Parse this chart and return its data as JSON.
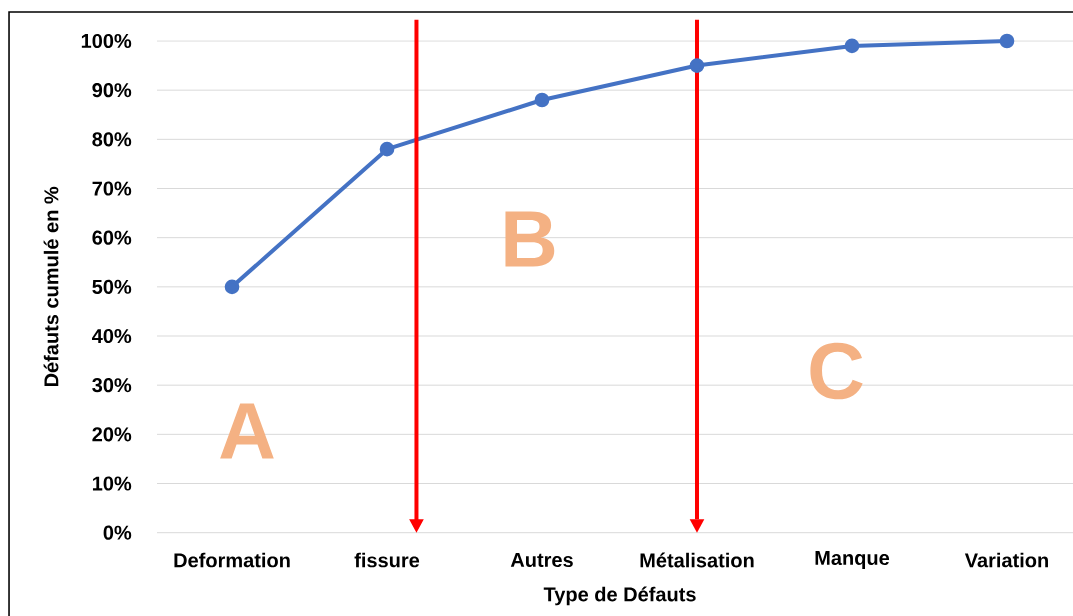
{
  "chart_data": {
    "type": "line",
    "xlabel": "Type de Défauts",
    "ylabel": "Défauts cumulé en %",
    "categories": [
      "Deformation",
      "fissure",
      "Autres",
      "Métalisation",
      "Manque",
      "Variation"
    ],
    "values": [
      50,
      78,
      88,
      95,
      99,
      100
    ],
    "color": "#4472c4",
    "marker": "circle",
    "line_style": "solid",
    "ylim": [
      0,
      100
    ],
    "yticks": [
      {
        "value": 0,
        "label": "0%"
      },
      {
        "value": 10,
        "label": "10%"
      },
      {
        "value": 20,
        "label": "20%"
      },
      {
        "value": 30,
        "label": "30%"
      },
      {
        "value": 40,
        "label": "40%"
      },
      {
        "value": 50,
        "label": "50%"
      },
      {
        "value": 60,
        "label": "60%"
      },
      {
        "value": 70,
        "label": "70%"
      },
      {
        "value": 80,
        "label": "80%"
      },
      {
        "value": 90,
        "label": "90%"
      },
      {
        "value": 100,
        "label": "100%"
      }
    ],
    "grid": "y",
    "ref_lines": [
      {
        "axis": "x",
        "value": "Métalisation",
        "color": "#ff0000"
      }
    ],
    "annotations": [
      "A",
      "B",
      "C"
    ]
  }
}
